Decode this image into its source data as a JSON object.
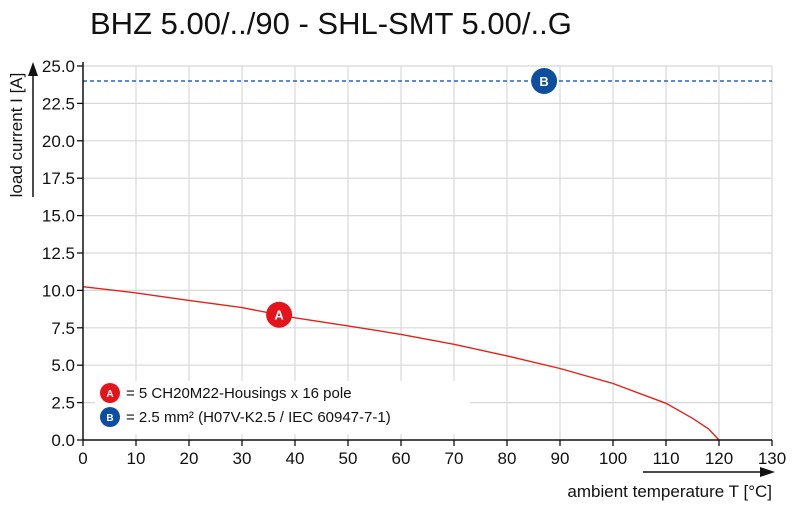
{
  "chart_data": {
    "type": "line",
    "title": "BHZ 5.00/../90 - SHL-SMT 5.00/..G",
    "xlabel": "ambient temperature T [°C]",
    "ylabel": "load current I [A]",
    "xlim": [
      0,
      130
    ],
    "ylim": [
      0,
      25
    ],
    "grid": true,
    "x_ticks": [
      "0",
      "10",
      "20",
      "30",
      "40",
      "50",
      "60",
      "70",
      "80",
      "90",
      "100",
      "110",
      "120",
      "130"
    ],
    "y_ticks": [
      "0.0",
      "2.5",
      "5.0",
      "7.5",
      "10.0",
      "12.5",
      "15.0",
      "17.5",
      "20.0",
      "22.5",
      "25.0"
    ],
    "series": [
      {
        "name": "A",
        "color": "#e3231b",
        "style": "solid",
        "marker_x": 37,
        "x": [
          0,
          10,
          20,
          30,
          40,
          50,
          60,
          70,
          80,
          90,
          100,
          110,
          115,
          118,
          120
        ],
        "y": [
          10.25,
          9.83,
          9.33,
          8.85,
          8.17,
          7.63,
          7.06,
          6.4,
          5.62,
          4.78,
          3.78,
          2.45,
          1.45,
          0.75,
          0
        ]
      },
      {
        "name": "B",
        "color": "#2b62c0",
        "style": "dashed",
        "marker_x": 87,
        "x": [
          0,
          130
        ],
        "y": [
          24,
          24
        ]
      }
    ],
    "legend": {
      "placement": "bottom-left",
      "entries": [
        {
          "key": "A",
          "color": "#e3141b",
          "text": "= 5 CH20M22-Housings x 16 pole"
        },
        {
          "key": "B",
          "color": "#0d4f9e",
          "text": "= 2.5 mm² (H07V-K2.5 / IEC 60947-7-1)"
        }
      ]
    }
  }
}
